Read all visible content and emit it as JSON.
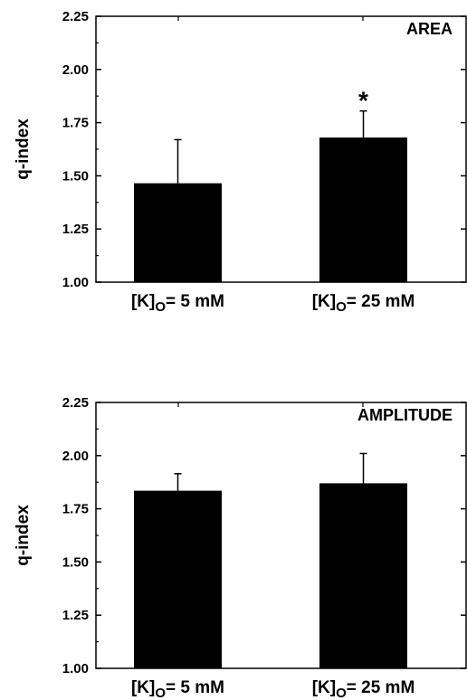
{
  "chart_data": [
    {
      "type": "bar",
      "panel_label": "AREA",
      "ylabel": "q-index",
      "categories": [
        {
          "main": "[K]",
          "sub": "O",
          "rest": "= 5 mM"
        },
        {
          "main": "[K]",
          "sub": "O",
          "rest": "= 25 mM"
        }
      ],
      "values": [
        1.465,
        1.68
      ],
      "errors": [
        0.205,
        0.125
      ],
      "significance": [
        "",
        "*"
      ],
      "ylim": [
        1.0,
        2.25
      ],
      "yticks": [
        "1.00",
        "1.25",
        "1.50",
        "1.75",
        "2.00",
        "2.25"
      ],
      "grid": false,
      "bar_color": "#000000"
    },
    {
      "type": "bar",
      "panel_label": "AMPLITUDE",
      "ylabel": "q-index",
      "categories": [
        {
          "main": "[K]",
          "sub": "O",
          "rest": "= 5 mM"
        },
        {
          "main": "[K]",
          "sub": "O",
          "rest": "= 25 mM"
        }
      ],
      "values": [
        1.835,
        1.87
      ],
      "errors": [
        0.08,
        0.14
      ],
      "significance": [
        "",
        ""
      ],
      "ylim": [
        1.0,
        2.25
      ],
      "yticks": [
        "1.00",
        "1.25",
        "1.50",
        "1.75",
        "2.00",
        "2.25"
      ],
      "grid": false,
      "bar_color": "#000000"
    }
  ]
}
